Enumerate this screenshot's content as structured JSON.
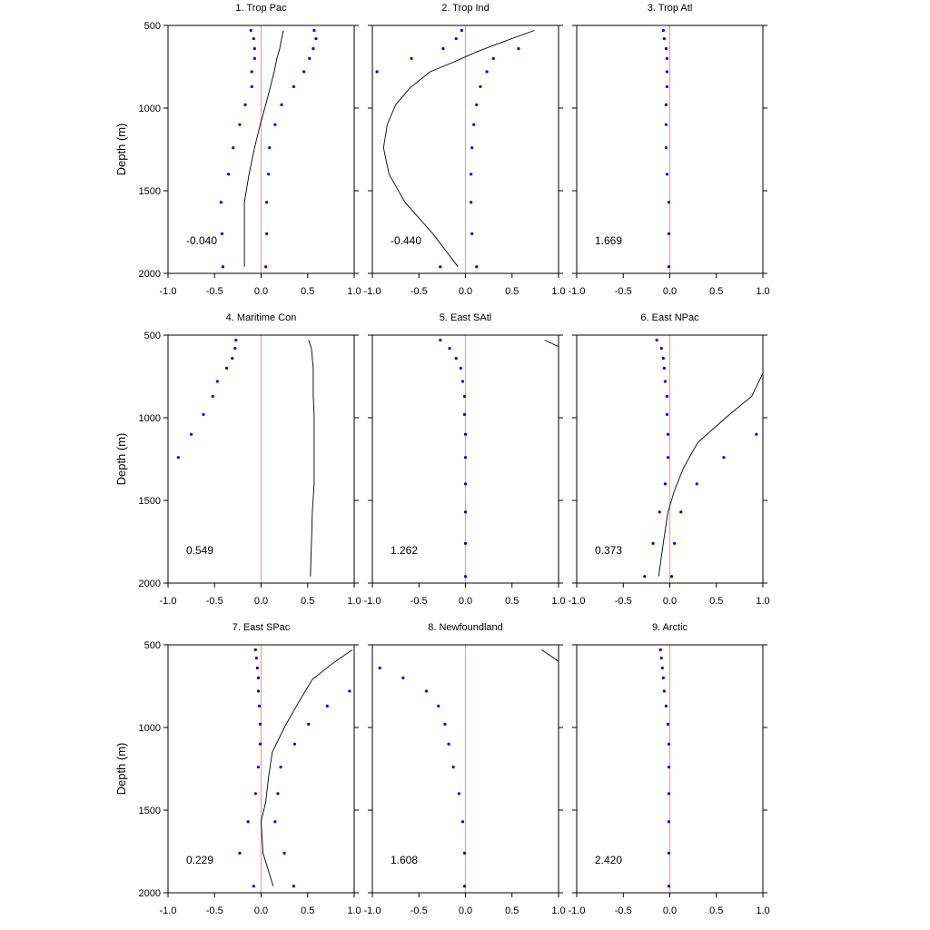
{
  "chart_data": {
    "type": "scatter",
    "shared": {
      "ylabel": "Depth (m)",
      "ylim": [
        2000,
        500
      ],
      "xlim": [
        -1.0,
        1.0
      ],
      "xticks": [
        -1.0,
        -0.5,
        0.0,
        0.5,
        1.0
      ],
      "xtick_labels": [
        "-1.0",
        "-0.5",
        "0.0",
        "0.5",
        "1.0"
      ],
      "yticks": [
        500,
        1000,
        1500,
        2000
      ],
      "ytick_labels": [
        "500",
        "1000",
        "1500",
        "2000"
      ],
      "zero_line_color": "#ff9999",
      "dot_color": "#0000ee",
      "curve_color": "#000000",
      "grid": false
    },
    "panels": [
      {
        "title": "1. Trop Pac",
        "annotation": "-0.040",
        "dots": [
          [
            -0.11,
            530
          ],
          [
            -0.08,
            580
          ],
          [
            -0.07,
            640
          ],
          [
            -0.07,
            700
          ],
          [
            -0.1,
            780
          ],
          [
            -0.1,
            870
          ],
          [
            -0.17,
            980
          ],
          [
            -0.23,
            1100
          ],
          [
            -0.3,
            1240
          ],
          [
            -0.35,
            1400
          ],
          [
            -0.43,
            1570
          ],
          [
            -0.42,
            1760
          ],
          [
            -0.41,
            1960
          ],
          [
            0.57,
            530
          ],
          [
            0.59,
            580
          ],
          [
            0.56,
            640
          ],
          [
            0.52,
            700
          ],
          [
            0.46,
            780
          ],
          [
            0.35,
            870
          ],
          [
            0.22,
            980
          ],
          [
            0.15,
            1100
          ],
          [
            0.09,
            1240
          ],
          [
            0.08,
            1400
          ],
          [
            0.06,
            1570
          ],
          [
            0.06,
            1760
          ],
          [
            0.05,
            1960
          ]
        ],
        "curve": [
          [
            0.24,
            530
          ],
          [
            0.22,
            580
          ],
          [
            0.2,
            640
          ],
          [
            0.17,
            700
          ],
          [
            0.14,
            780
          ],
          [
            0.1,
            870
          ],
          [
            0.05,
            980
          ],
          [
            -0.01,
            1100
          ],
          [
            -0.07,
            1240
          ],
          [
            -0.13,
            1400
          ],
          [
            -0.18,
            1570
          ],
          [
            -0.18,
            1760
          ],
          [
            -0.18,
            1960
          ]
        ]
      },
      {
        "title": "2. Trop Ind",
        "annotation": "-0.440",
        "dots": [
          [
            -0.04,
            530
          ],
          [
            -0.1,
            580
          ],
          [
            -0.24,
            640
          ],
          [
            -0.58,
            700
          ],
          [
            -0.95,
            780
          ],
          [
            0.57,
            640
          ],
          [
            0.3,
            700
          ],
          [
            0.23,
            780
          ],
          [
            0.16,
            870
          ],
          [
            0.12,
            980
          ],
          [
            0.09,
            1100
          ],
          [
            0.07,
            1240
          ],
          [
            0.06,
            1400
          ],
          [
            0.06,
            1570
          ],
          [
            0.07,
            1760
          ],
          [
            0.12,
            1960
          ],
          [
            -0.27,
            1960
          ]
        ],
        "curve": [
          [
            0.74,
            530
          ],
          [
            0.4,
            600
          ],
          [
            0.12,
            660
          ],
          [
            -0.12,
            720
          ],
          [
            -0.38,
            780
          ],
          [
            -0.6,
            880
          ],
          [
            -0.75,
            980
          ],
          [
            -0.84,
            1100
          ],
          [
            -0.88,
            1240
          ],
          [
            -0.82,
            1400
          ],
          [
            -0.65,
            1570
          ],
          [
            -0.35,
            1760
          ],
          [
            -0.08,
            1960
          ]
        ]
      },
      {
        "title": "3. Trop Atl",
        "annotation": "1.669",
        "dots": [
          [
            -0.07,
            530
          ],
          [
            -0.06,
            580
          ],
          [
            -0.04,
            640
          ],
          [
            -0.03,
            700
          ],
          [
            -0.03,
            780
          ],
          [
            -0.03,
            870
          ],
          [
            -0.04,
            980
          ],
          [
            -0.04,
            1100
          ],
          [
            -0.04,
            1240
          ],
          [
            -0.03,
            1400
          ],
          [
            -0.01,
            1570
          ],
          [
            -0.01,
            1760
          ],
          [
            -0.01,
            1960
          ]
        ],
        "curve": []
      },
      {
        "title": "4. Maritime Con",
        "annotation": "0.549",
        "dots": [
          [
            -0.27,
            530
          ],
          [
            -0.28,
            580
          ],
          [
            -0.31,
            640
          ],
          [
            -0.37,
            700
          ],
          [
            -0.47,
            780
          ],
          [
            -0.52,
            870
          ],
          [
            -0.62,
            980
          ],
          [
            -0.75,
            1100
          ],
          [
            -0.89,
            1240
          ]
        ],
        "curve": [
          [
            0.51,
            530
          ],
          [
            0.54,
            580
          ],
          [
            0.55,
            640
          ],
          [
            0.56,
            700
          ],
          [
            0.56,
            780
          ],
          [
            0.56,
            870
          ],
          [
            0.57,
            980
          ],
          [
            0.57,
            1100
          ],
          [
            0.57,
            1240
          ],
          [
            0.57,
            1400
          ],
          [
            0.55,
            1570
          ],
          [
            0.54,
            1760
          ],
          [
            0.53,
            1960
          ]
        ]
      },
      {
        "title": "5. East SAtl",
        "annotation": "1.262",
        "dots": [
          [
            -0.27,
            530
          ],
          [
            -0.17,
            580
          ],
          [
            -0.1,
            640
          ],
          [
            -0.05,
            700
          ],
          [
            -0.03,
            780
          ],
          [
            -0.01,
            870
          ],
          [
            -0.01,
            980
          ],
          [
            0.0,
            1100
          ],
          [
            0.0,
            1240
          ],
          [
            0.0,
            1400
          ],
          [
            0.0,
            1570
          ],
          [
            0.0,
            1760
          ],
          [
            0.0,
            1960
          ]
        ],
        "curve": [
          [
            0.85,
            530
          ],
          [
            1.0,
            570
          ]
        ]
      },
      {
        "title": "6. East NPac",
        "annotation": "0.373",
        "dots": [
          [
            -0.14,
            530
          ],
          [
            -0.09,
            580
          ],
          [
            -0.07,
            640
          ],
          [
            -0.06,
            700
          ],
          [
            -0.05,
            780
          ],
          [
            -0.03,
            870
          ],
          [
            -0.03,
            980
          ],
          [
            -0.02,
            1100
          ],
          [
            -0.02,
            1240
          ],
          [
            -0.05,
            1400
          ],
          [
            -0.11,
            1570
          ],
          [
            -0.18,
            1760
          ],
          [
            -0.27,
            1960
          ],
          [
            0.93,
            1100
          ],
          [
            0.58,
            1240
          ],
          [
            0.29,
            1400
          ],
          [
            0.12,
            1570
          ],
          [
            0.05,
            1760
          ],
          [
            0.02,
            1960
          ]
        ],
        "curve": [
          [
            1.0,
            730
          ],
          [
            0.88,
            870
          ],
          [
            0.6,
            1000
          ],
          [
            0.3,
            1150
          ],
          [
            0.15,
            1300
          ],
          [
            0.05,
            1440
          ],
          [
            -0.02,
            1570
          ],
          [
            -0.07,
            1760
          ],
          [
            -0.12,
            1960
          ]
        ]
      },
      {
        "title": "7. East SPac",
        "annotation": "0.229",
        "dots": [
          [
            -0.06,
            530
          ],
          [
            -0.05,
            580
          ],
          [
            -0.04,
            640
          ],
          [
            -0.03,
            700
          ],
          [
            -0.03,
            780
          ],
          [
            -0.02,
            870
          ],
          [
            -0.01,
            980
          ],
          [
            -0.01,
            1100
          ],
          [
            -0.03,
            1240
          ],
          [
            -0.06,
            1400
          ],
          [
            -0.14,
            1570
          ],
          [
            -0.23,
            1760
          ],
          [
            -0.08,
            1960
          ],
          [
            0.95,
            780
          ],
          [
            0.71,
            870
          ],
          [
            0.51,
            980
          ],
          [
            0.36,
            1100
          ],
          [
            0.21,
            1240
          ],
          [
            0.18,
            1400
          ],
          [
            0.15,
            1570
          ],
          [
            0.25,
            1760
          ],
          [
            0.35,
            1960
          ]
        ],
        "curve": [
          [
            0.98,
            530
          ],
          [
            0.75,
            620
          ],
          [
            0.55,
            710
          ],
          [
            0.4,
            850
          ],
          [
            0.25,
            1000
          ],
          [
            0.12,
            1150
          ],
          [
            0.08,
            1300
          ],
          [
            0.05,
            1450
          ],
          [
            0.0,
            1570
          ],
          [
            0.02,
            1760
          ],
          [
            0.13,
            1960
          ]
        ]
      },
      {
        "title": "8. Newfoundland",
        "annotation": "1.608",
        "dots": [
          [
            -0.92,
            640
          ],
          [
            -0.67,
            700
          ],
          [
            -0.42,
            780
          ],
          [
            -0.29,
            870
          ],
          [
            -0.22,
            980
          ],
          [
            -0.18,
            1100
          ],
          [
            -0.13,
            1240
          ],
          [
            -0.07,
            1400
          ],
          [
            -0.03,
            1570
          ],
          [
            -0.01,
            1760
          ],
          [
            -0.01,
            1960
          ]
        ],
        "curve": [
          [
            0.82,
            530
          ],
          [
            1.0,
            600
          ]
        ]
      },
      {
        "title": "9. Arctic",
        "annotation": "2.420",
        "dots": [
          [
            -0.1,
            530
          ],
          [
            -0.09,
            580
          ],
          [
            -0.08,
            640
          ],
          [
            -0.07,
            700
          ],
          [
            -0.06,
            780
          ],
          [
            -0.04,
            870
          ],
          [
            -0.02,
            980
          ],
          [
            -0.01,
            1100
          ],
          [
            -0.01,
            1240
          ],
          [
            -0.01,
            1400
          ],
          [
            -0.01,
            1570
          ],
          [
            -0.01,
            1760
          ],
          [
            -0.01,
            1960
          ]
        ],
        "curve": []
      }
    ]
  }
}
